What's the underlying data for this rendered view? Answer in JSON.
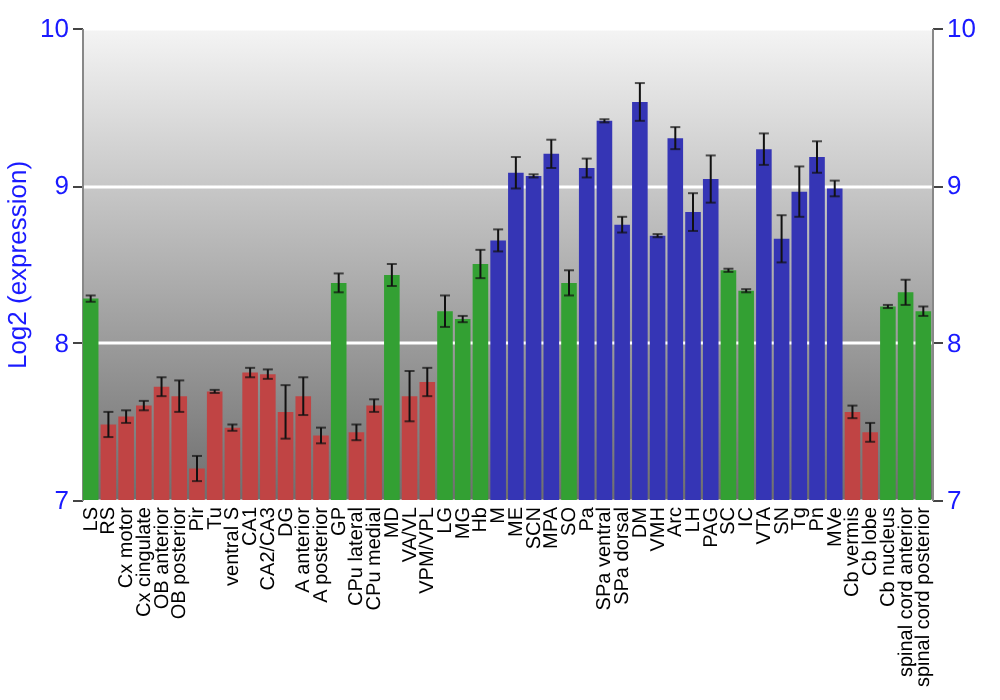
{
  "chart_data": {
    "type": "bar",
    "ylabel": "Log2 (expression)",
    "categories": [
      "LS",
      "RS",
      "Cx motor",
      "Cx cingulate",
      "OB anterior",
      "OB posterior",
      "Pir",
      "Tu",
      "ventral S",
      "CA1",
      "CA2/CA3",
      "DG",
      "A anterior",
      "A posterior",
      "GP",
      "CPu lateral",
      "CPu medial",
      "MD",
      "VA/VL",
      "VPM/VPL",
      "LG",
      "MG",
      "Hb",
      "M",
      "ME",
      "SCN",
      "MPA",
      "SO",
      "Pa",
      "SPa ventral",
      "SPa dorsal",
      "DM",
      "VMH",
      "Arc",
      "LH",
      "PAG",
      "SC",
      "IC",
      "VTA",
      "SN",
      "Tg",
      "Pn",
      "MVe",
      "Cb vermis",
      "Cb lobe",
      "Cb nucleus",
      "spinal cord anterior",
      "spinal cord posterior"
    ],
    "values": [
      8.28,
      7.48,
      7.53,
      7.6,
      7.72,
      7.66,
      7.2,
      7.69,
      7.46,
      7.81,
      7.8,
      7.56,
      7.66,
      7.41,
      8.38,
      7.43,
      7.6,
      8.43,
      7.66,
      7.75,
      8.2,
      8.15,
      8.5,
      8.65,
      9.08,
      9.06,
      9.2,
      8.38,
      9.11,
      9.41,
      8.75,
      9.53,
      8.68,
      9.3,
      8.83,
      9.04,
      8.46,
      8.33,
      9.23,
      8.66,
      8.96,
      9.18,
      8.98,
      7.56,
      7.43,
      8.23,
      8.32,
      8.2
    ],
    "errors": [
      0.02,
      0.08,
      0.04,
      0.03,
      0.06,
      0.1,
      0.08,
      0.01,
      0.02,
      0.03,
      0.03,
      0.17,
      0.12,
      0.05,
      0.06,
      0.05,
      0.04,
      0.07,
      0.16,
      0.09,
      0.1,
      0.02,
      0.09,
      0.07,
      0.1,
      0.01,
      0.09,
      0.08,
      0.06,
      0.01,
      0.05,
      0.12,
      0.01,
      0.07,
      0.12,
      0.15,
      0.01,
      0.01,
      0.1,
      0.15,
      0.16,
      0.1,
      0.05,
      0.04,
      0.06,
      0.01,
      0.08,
      0.03
    ],
    "colors": [
      "#33a033",
      "#c04444",
      "#c04444",
      "#c04444",
      "#c04444",
      "#c04444",
      "#c04444",
      "#c04444",
      "#c04444",
      "#c04444",
      "#c04444",
      "#c04444",
      "#c04444",
      "#c04444",
      "#33a033",
      "#c04444",
      "#c04444",
      "#33a033",
      "#c04444",
      "#c04444",
      "#33a033",
      "#33a033",
      "#33a033",
      "#3535b5",
      "#3535b5",
      "#3535b5",
      "#3535b5",
      "#33a033",
      "#3535b5",
      "#3535b5",
      "#3535b5",
      "#3535b5",
      "#3535b5",
      "#3535b5",
      "#3535b5",
      "#3535b5",
      "#33a033",
      "#33a033",
      "#3535b5",
      "#3535b5",
      "#3535b5",
      "#3535b5",
      "#3535b5",
      "#c04444",
      "#c04444",
      "#33a033",
      "#33a033",
      "#33a033"
    ],
    "ylim": [
      7,
      10
    ],
    "yticks": [
      7,
      8,
      9,
      10
    ],
    "y2lim": [
      7,
      10
    ],
    "y2ticks": [
      7,
      8,
      9,
      10
    ],
    "grid": "y"
  }
}
